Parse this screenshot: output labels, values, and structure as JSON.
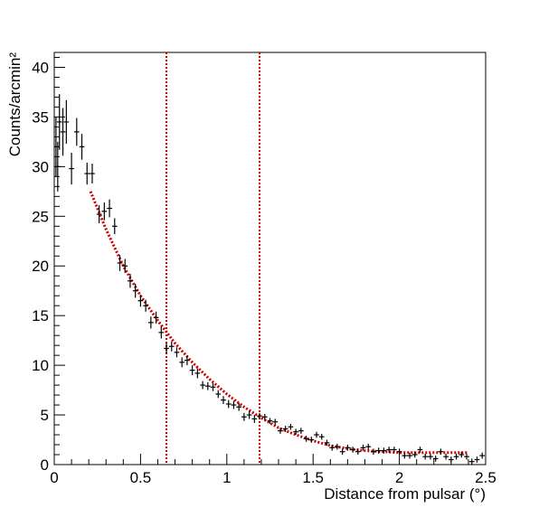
{
  "chart_data": {
    "type": "scatter",
    "title": "",
    "xlabel": "Distance from pulsar (°)",
    "ylabel": "Counts/arcmin²",
    "xlim": [
      0,
      2.5
    ],
    "ylim": [
      0,
      41.5
    ],
    "xticks": [
      0,
      0.5,
      1,
      1.5,
      2,
      2.5
    ],
    "xtick_labels": [
      "0",
      "0.5",
      "1",
      "1.5",
      "2",
      "2.5"
    ],
    "yticks": [
      0,
      5,
      10,
      15,
      20,
      25,
      30,
      35,
      40
    ],
    "ytick_labels": [
      "0",
      "5",
      "10",
      "15",
      "20",
      "25",
      "30",
      "35",
      "40"
    ],
    "grid": false,
    "legend": "none",
    "colors": {
      "data": "#000000",
      "fit": "#cc0000",
      "markers": "#cc0000"
    },
    "series": [
      {
        "style": "points-with-error-bars",
        "x": [
          0.01,
          0.02,
          0.03,
          0.05,
          0.07,
          0.1,
          0.13,
          0.16,
          0.19,
          0.22,
          0.26,
          0.29,
          0.32,
          0.35,
          0.38,
          0.41,
          0.44,
          0.47,
          0.5,
          0.53,
          0.56,
          0.59,
          0.62,
          0.65,
          0.68,
          0.71,
          0.74,
          0.77,
          0.8,
          0.83,
          0.86,
          0.89,
          0.92,
          0.95,
          0.98,
          1.01,
          1.04,
          1.07,
          1.1,
          1.13,
          1.16,
          1.19,
          1.22,
          1.25,
          1.28,
          1.31,
          1.34,
          1.37,
          1.4,
          1.43,
          1.46,
          1.49,
          1.52,
          1.55,
          1.58,
          1.61,
          1.64,
          1.67,
          1.7,
          1.73,
          1.76,
          1.79,
          1.82,
          1.85,
          1.88,
          1.91,
          1.94,
          1.97,
          2.0,
          2.03,
          2.06,
          2.09,
          2.12,
          2.15,
          2.18,
          2.21,
          2.24,
          2.27,
          2.3,
          2.33,
          2.36,
          2.39,
          2.42,
          2.45,
          2.48
        ],
        "y": [
          32.0,
          30.0,
          34.5,
          33.5,
          34.5,
          29.8,
          33.5,
          32.0,
          29.3,
          29.3,
          25.2,
          25.5,
          25.8,
          24.0,
          20.3,
          20.0,
          18.5,
          17.5,
          16.5,
          16.0,
          14.3,
          14.8,
          13.3,
          11.7,
          11.9,
          11.3,
          10.3,
          10.5,
          9.5,
          9.2,
          8.0,
          7.9,
          7.8,
          7.1,
          6.5,
          6.1,
          6.0,
          5.8,
          4.8,
          5.0,
          4.6,
          4.9,
          4.8,
          4.4,
          4.3,
          3.4,
          3.6,
          3.8,
          3.3,
          3.4,
          2.6,
          2.5,
          3.0,
          2.8,
          2.2,
          1.7,
          1.8,
          1.3,
          1.7,
          1.5,
          1.3,
          1.7,
          1.8,
          1.3,
          1.4,
          1.4,
          1.5,
          1.5,
          1.3,
          0.9,
          0.9,
          1.0,
          1.5,
          0.8,
          0.8,
          0.6,
          1.3,
          0.8,
          0.5,
          0.8,
          1.0,
          0.8,
          0.3,
          0.5,
          0.9
        ],
        "yerr": [
          3.0,
          2.5,
          2.8,
          2.4,
          2.2,
          1.6,
          1.4,
          1.3,
          1.1,
          1.0,
          0.9,
          0.9,
          0.9,
          0.8,
          0.8,
          0.7,
          0.7,
          0.7,
          0.6,
          0.6,
          0.6,
          0.6,
          0.6,
          0.5,
          0.5,
          0.5,
          0.5,
          0.5,
          0.5,
          0.5,
          0.4,
          0.4,
          0.4,
          0.4,
          0.4,
          0.4,
          0.4,
          0.4,
          0.4,
          0.4,
          0.4,
          0.3,
          0.3,
          0.3,
          0.3,
          0.3,
          0.3,
          0.3,
          0.3,
          0.3,
          0.3,
          0.3,
          0.3,
          0.3,
          0.3,
          0.3,
          0.3,
          0.3,
          0.3,
          0.3,
          0.3,
          0.3,
          0.3,
          0.3,
          0.3,
          0.3,
          0.3,
          0.3,
          0.3,
          0.3,
          0.3,
          0.3,
          0.3,
          0.3,
          0.3,
          0.3,
          0.3,
          0.3,
          0.3,
          0.3,
          0.3,
          0.3,
          0.3,
          0.3,
          0.3
        ],
        "xerr": 0.015
      },
      {
        "style": "dotted-fit-curve",
        "x": [
          0.21,
          0.3,
          0.4,
          0.5,
          0.6,
          0.7,
          0.8,
          0.9,
          1.0,
          1.1,
          1.2,
          1.3,
          1.4,
          1.5,
          1.6,
          1.7,
          1.8,
          1.9,
          2.0,
          2.1,
          2.2,
          2.3,
          2.4
        ],
        "y": [
          27.5,
          23.7,
          20.0,
          17.0,
          14.5,
          12.2,
          10.3,
          8.6,
          7.1,
          5.8,
          4.7,
          3.7,
          3.0,
          2.4,
          1.9,
          1.6,
          1.4,
          1.3,
          1.2,
          1.2,
          1.2,
          1.2,
          1.2
        ]
      }
    ],
    "vertical_markers": [
      0.65,
      1.19
    ]
  }
}
